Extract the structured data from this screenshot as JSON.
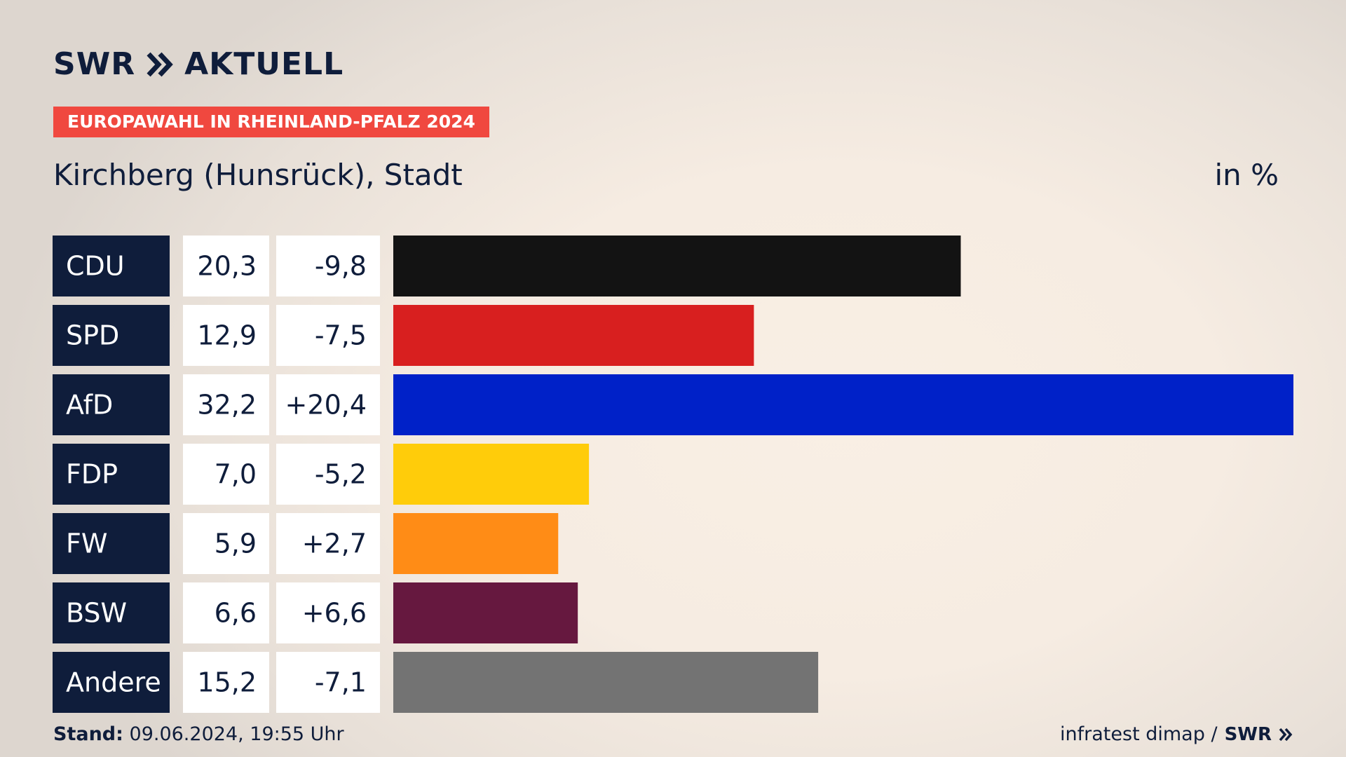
{
  "header": {
    "brand": "SWR",
    "section": "AKTUELL",
    "badge": "EUROPAWAHL IN RHEINLAND-PFALZ 2024",
    "location": "Kirchberg (Hunsrück), Stadt",
    "unit": "in %"
  },
  "footer": {
    "stand_label": "Stand:",
    "stand_value": "09.06.2024, 19:55 Uhr",
    "source": "infratest dimap /",
    "source_brand": "SWR"
  },
  "colors": {
    "navy": "#0f1d3b",
    "badge": "#f0483f"
  },
  "chart_data": {
    "type": "bar",
    "orientation": "horizontal",
    "categories": [
      "CDU",
      "SPD",
      "AfD",
      "FDP",
      "FW",
      "BSW",
      "Andere"
    ],
    "values": [
      20.3,
      12.9,
      32.2,
      7.0,
      5.9,
      6.6,
      15.2
    ],
    "value_labels": [
      "20,3",
      "12,9",
      "32,2",
      "7,0",
      "5,9",
      "6,6",
      "15,2"
    ],
    "change_labels": [
      "-9,8",
      "-7,5",
      "+20,4",
      "-5,2",
      "+2,7",
      "+6,6",
      "-7,1"
    ],
    "changes": [
      -9.8,
      -7.5,
      20.4,
      -5.2,
      2.7,
      6.6,
      -7.1
    ],
    "colors": [
      "#131313",
      "#d81f1f",
      "#0021c8",
      "#ffcc0a",
      "#ff8c16",
      "#66183f",
      "#737373"
    ],
    "xlim": [
      0,
      32.2
    ],
    "grid": false,
    "title": "",
    "xlabel": "",
    "ylabel": ""
  }
}
